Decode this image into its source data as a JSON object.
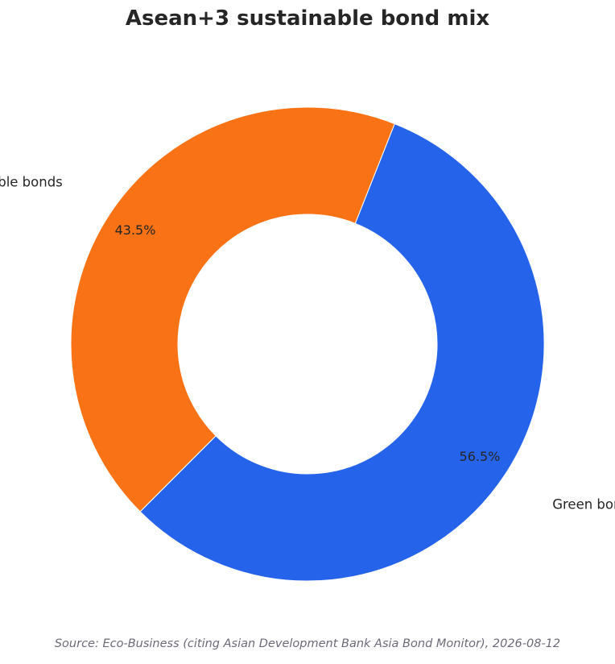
{
  "chart_data": {
    "type": "pie",
    "title": "Asean+3 sustainable bond mix",
    "donut": true,
    "legend": "none",
    "slices": [
      {
        "label": "Green bonds",
        "value": 56.5,
        "value_label": "56.5%",
        "color": "#2563eb"
      },
      {
        "label": "Other sustainable bonds",
        "value": 43.5,
        "value_label": "43.5%",
        "color": "#f97316"
      }
    ]
  },
  "source": "Source: Eco-Business (citing Asian Development Bank Asia Bond Monitor), 2026-08-12"
}
